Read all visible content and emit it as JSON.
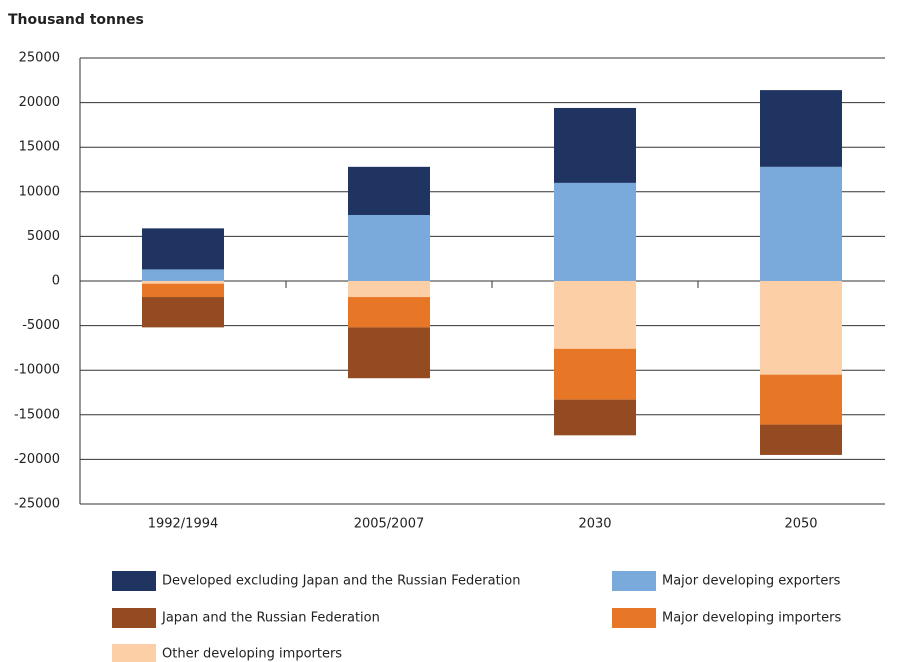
{
  "chart_data": {
    "type": "stacked_bar",
    "title": "Thousand tonnes",
    "categories": [
      "1992/1994",
      "2005/2007",
      "2030",
      "2050"
    ],
    "series": [
      {
        "name": "Developed excluding Japan and the Russian Federation",
        "color": "#1f3461",
        "values": [
          4600,
          5400,
          8400,
          8600
        ]
      },
      {
        "name": "Major developing exporters",
        "color": "#7aaadc",
        "values": [
          1300,
          7400,
          11000,
          12800
        ]
      },
      {
        "name": "Japan and the Russian Federation",
        "color": "#954b22",
        "values": [
          -3400,
          -5700,
          -4000,
          -3400
        ]
      },
      {
        "name": "Major developing importers",
        "color": "#e87627",
        "values": [
          -1500,
          -3400,
          -5700,
          -5600
        ]
      },
      {
        "name": "Other developing importers",
        "color": "#fdcfa6",
        "values": [
          -300,
          -1800,
          -7600,
          -10500
        ]
      }
    ],
    "ylim": [
      -25000,
      25000
    ],
    "yticks": [
      -25000,
      -20000,
      -15000,
      -10000,
      -5000,
      0,
      5000,
      10000,
      15000,
      20000,
      25000
    ],
    "grid": true
  }
}
